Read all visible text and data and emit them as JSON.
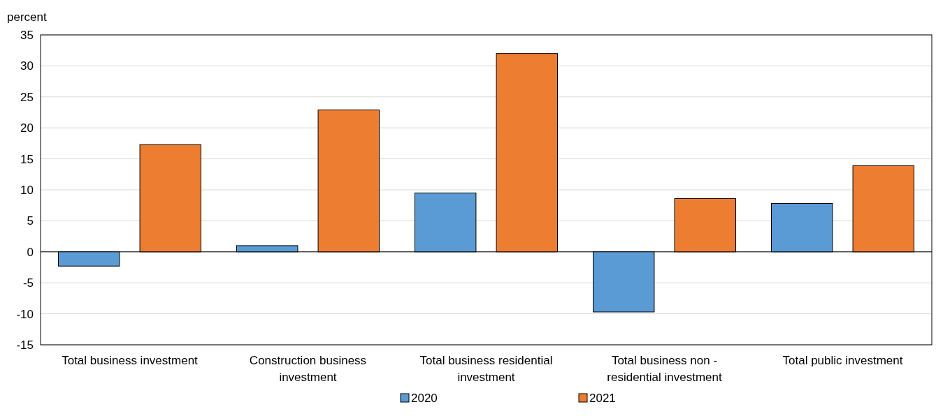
{
  "chart_data": {
    "type": "bar",
    "ylabel": "percent",
    "categories": [
      "Total business investment",
      "Construction business investment",
      "Total business residential investment",
      "Total business non - residential investment",
      "Total public investment"
    ],
    "series": [
      {
        "name": "2020",
        "color": "#5b9bd5",
        "values": [
          -2.3,
          1.0,
          9.5,
          -9.7,
          7.8
        ]
      },
      {
        "name": "2021",
        "color": "#ed7d31",
        "values": [
          17.3,
          22.9,
          32.0,
          8.6,
          13.9
        ]
      }
    ],
    "ylim": [
      -15,
      35
    ],
    "yticks": [
      -15,
      -10,
      -5,
      0,
      5,
      10,
      15,
      20,
      25,
      30,
      35
    ],
    "grid": "y",
    "legend": "bottom"
  }
}
